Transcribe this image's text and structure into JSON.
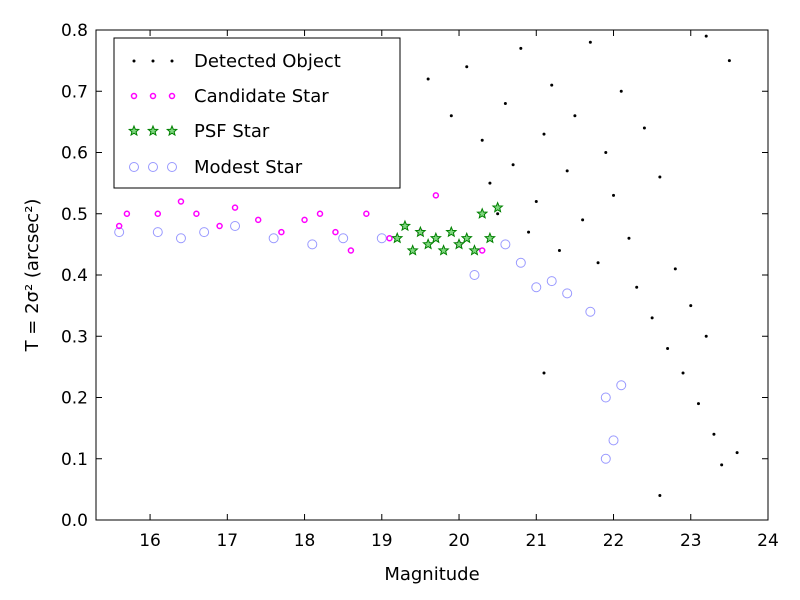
{
  "chart_data": {
    "type": "scatter",
    "title": "",
    "xlabel": "Magnitude",
    "ylabel": "T = 2σ² (arcsec²)",
    "xlim": [
      15.3,
      24
    ],
    "ylim": [
      0,
      0.8
    ],
    "xticks": [
      16,
      17,
      18,
      19,
      20,
      21,
      22,
      23,
      24
    ],
    "yticks": [
      0.0,
      0.1,
      0.2,
      0.3,
      0.4,
      0.5,
      0.6,
      0.7,
      0.8
    ],
    "xtick_labels": [
      "16",
      "17",
      "18",
      "19",
      "20",
      "21",
      "22",
      "23",
      "24"
    ],
    "ytick_labels": [
      "0.0",
      "0.1",
      "0.2",
      "0.3",
      "0.4",
      "0.5",
      "0.6",
      "0.7",
      "0.8"
    ],
    "grid": false,
    "legend_position": "upper-left",
    "series": [
      {
        "name": "Detected Object",
        "marker": "dot",
        "color": "#000000",
        "points": [
          [
            19.6,
            0.72
          ],
          [
            19.9,
            0.66
          ],
          [
            20.1,
            0.74
          ],
          [
            20.3,
            0.62
          ],
          [
            20.4,
            0.55
          ],
          [
            20.5,
            0.5
          ],
          [
            20.6,
            0.68
          ],
          [
            20.7,
            0.58
          ],
          [
            20.8,
            0.77
          ],
          [
            20.9,
            0.47
          ],
          [
            21.0,
            0.52
          ],
          [
            21.1,
            0.63
          ],
          [
            21.2,
            0.71
          ],
          [
            21.3,
            0.44
          ],
          [
            21.4,
            0.57
          ],
          [
            21.5,
            0.66
          ],
          [
            21.6,
            0.49
          ],
          [
            21.7,
            0.78
          ],
          [
            21.8,
            0.42
          ],
          [
            21.9,
            0.6
          ],
          [
            22.0,
            0.53
          ],
          [
            22.1,
            0.7
          ],
          [
            22.2,
            0.46
          ],
          [
            22.3,
            0.38
          ],
          [
            22.4,
            0.64
          ],
          [
            22.5,
            0.33
          ],
          [
            22.6,
            0.56
          ],
          [
            22.7,
            0.28
          ],
          [
            22.8,
            0.41
          ],
          [
            22.9,
            0.24
          ],
          [
            23.0,
            0.35
          ],
          [
            23.1,
            0.19
          ],
          [
            23.2,
            0.3
          ],
          [
            23.3,
            0.14
          ],
          [
            23.4,
            0.09
          ],
          [
            21.1,
            0.24
          ],
          [
            22.6,
            0.04
          ],
          [
            23.6,
            0.11
          ],
          [
            23.5,
            0.75
          ],
          [
            23.2,
            0.79
          ]
        ]
      },
      {
        "name": "Candidate Star",
        "marker": "small-circle",
        "color": "#ff00ff",
        "points": [
          [
            15.6,
            0.48
          ],
          [
            15.7,
            0.5
          ],
          [
            16.1,
            0.5
          ],
          [
            16.4,
            0.52
          ],
          [
            16.6,
            0.5
          ],
          [
            16.9,
            0.48
          ],
          [
            17.1,
            0.51
          ],
          [
            17.4,
            0.49
          ],
          [
            17.7,
            0.47
          ],
          [
            18.0,
            0.49
          ],
          [
            18.2,
            0.5
          ],
          [
            18.4,
            0.47
          ],
          [
            18.6,
            0.44
          ],
          [
            18.8,
            0.5
          ],
          [
            19.1,
            0.46
          ],
          [
            19.5,
            0.47
          ],
          [
            19.7,
            0.53
          ],
          [
            20.0,
            0.45
          ],
          [
            20.3,
            0.44
          ]
        ]
      },
      {
        "name": "PSF Star",
        "marker": "star",
        "color": "#008000",
        "points": [
          [
            19.2,
            0.46
          ],
          [
            19.3,
            0.48
          ],
          [
            19.4,
            0.44
          ],
          [
            19.5,
            0.47
          ],
          [
            19.6,
            0.45
          ],
          [
            19.7,
            0.46
          ],
          [
            19.8,
            0.44
          ],
          [
            19.9,
            0.47
          ],
          [
            20.0,
            0.45
          ],
          [
            20.1,
            0.46
          ],
          [
            20.2,
            0.44
          ],
          [
            20.3,
            0.5
          ],
          [
            20.4,
            0.46
          ],
          [
            20.5,
            0.51
          ]
        ]
      },
      {
        "name": "Modest Star",
        "marker": "open-circle",
        "color": "#9999ff",
        "points": [
          [
            15.6,
            0.47
          ],
          [
            16.1,
            0.47
          ],
          [
            16.4,
            0.46
          ],
          [
            16.7,
            0.47
          ],
          [
            17.1,
            0.48
          ],
          [
            17.6,
            0.46
          ],
          [
            18.1,
            0.45
          ],
          [
            18.5,
            0.46
          ],
          [
            19.0,
            0.46
          ],
          [
            20.6,
            0.45
          ],
          [
            20.8,
            0.42
          ],
          [
            21.0,
            0.38
          ],
          [
            21.2,
            0.39
          ],
          [
            21.4,
            0.37
          ],
          [
            21.7,
            0.34
          ],
          [
            21.9,
            0.2
          ],
          [
            22.1,
            0.22
          ],
          [
            22.0,
            0.13
          ],
          [
            21.9,
            0.1
          ],
          [
            20.2,
            0.4
          ]
        ]
      }
    ]
  },
  "legend": {
    "items": [
      {
        "label": "Detected Object"
      },
      {
        "label": "Candidate Star"
      },
      {
        "label": "PSF Star"
      },
      {
        "label": "Modest Star"
      }
    ]
  }
}
